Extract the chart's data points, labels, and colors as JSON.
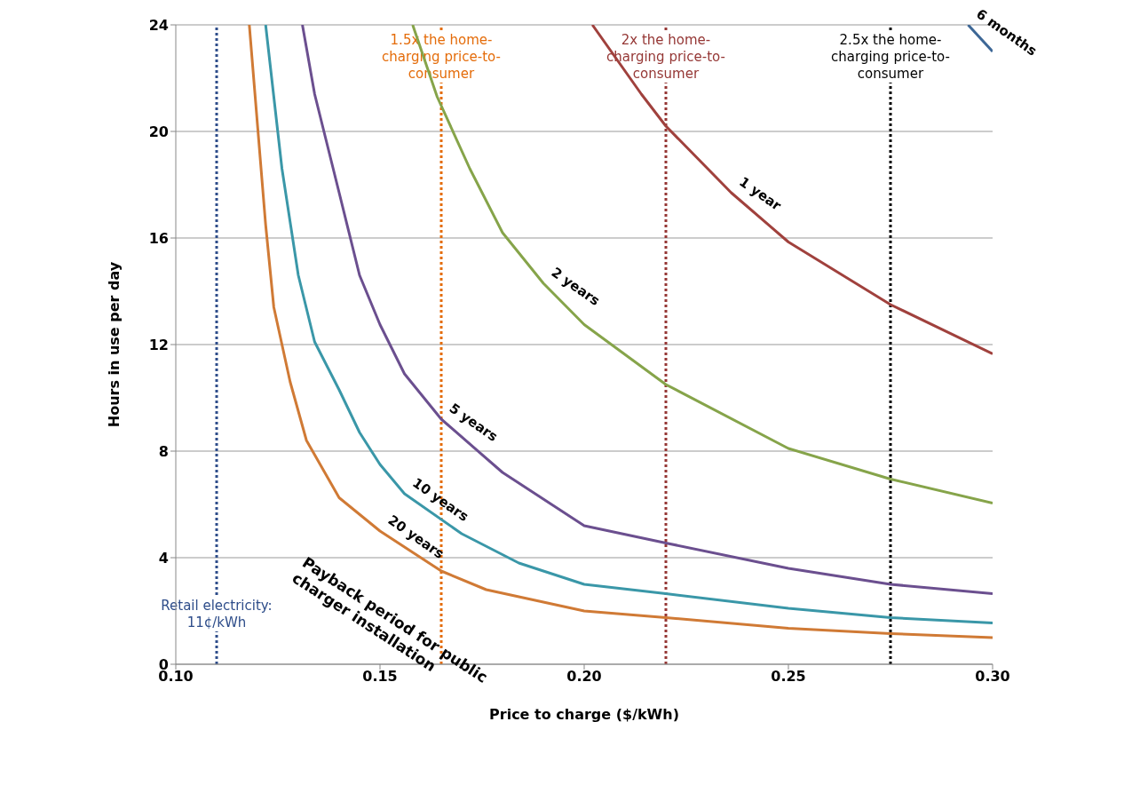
{
  "chart_data": {
    "type": "line",
    "xlabel": "Price to charge ($/kWh)",
    "ylabel": "Hours in use per day",
    "xlim": [
      0.1,
      0.3
    ],
    "xticks": [
      {
        "value": 0.1,
        "label": "0.10"
      },
      {
        "value": 0.15,
        "label": "0.15"
      },
      {
        "value": 0.2,
        "label": "0.20"
      },
      {
        "value": 0.25,
        "label": "0.25"
      },
      {
        "value": 0.3,
        "label": "0.30"
      }
    ],
    "ylim": [
      0,
      24
    ],
    "yticks": [
      0,
      4,
      8,
      12,
      16,
      20,
      24
    ],
    "grid": "y",
    "legend": false,
    "marker": "none",
    "line_style": "solid",
    "series": [
      {
        "name": "6 months",
        "color": "#3d6796",
        "x": [
          0.294,
          0.3
        ],
        "values": [
          24,
          23.0
        ]
      },
      {
        "name": "1 year",
        "color": "#a0413d",
        "x": [
          0.202,
          0.214,
          0.22,
          0.236,
          0.25,
          0.275,
          0.3
        ],
        "values": [
          24,
          21.4,
          20.2,
          17.7,
          15.85,
          13.5,
          11.65
        ]
      },
      {
        "name": "2 years",
        "color": "#86a44a",
        "x": [
          0.158,
          0.164,
          0.172,
          0.18,
          0.19,
          0.2,
          0.22,
          0.25,
          0.275,
          0.3
        ],
        "values": [
          24,
          21.3,
          18.6,
          16.2,
          14.3,
          12.75,
          10.5,
          8.1,
          6.95,
          6.05
        ]
      },
      {
        "name": "5 years",
        "color": "#6b4f8f",
        "x": [
          0.131,
          0.134,
          0.14,
          0.145,
          0.15,
          0.156,
          0.165,
          0.18,
          0.2,
          0.22,
          0.25,
          0.275,
          0.3
        ],
        "values": [
          24,
          21.4,
          17.7,
          14.6,
          12.75,
          10.9,
          9.2,
          7.2,
          5.2,
          4.55,
          3.6,
          3.0,
          2.65
        ]
      },
      {
        "name": "10 years",
        "color": "#3a97a8",
        "x": [
          0.122,
          0.126,
          0.13,
          0.134,
          0.14,
          0.145,
          0.15,
          0.156,
          0.17,
          0.184,
          0.2,
          0.22,
          0.25,
          0.275,
          0.3
        ],
        "values": [
          24,
          18.6,
          14.6,
          12.1,
          10.3,
          8.7,
          7.5,
          6.4,
          4.9,
          3.8,
          3.0,
          2.65,
          2.1,
          1.75,
          1.55
        ]
      },
      {
        "name": "20 years",
        "color": "#d07a35",
        "x": [
          0.118,
          0.122,
          0.124,
          0.128,
          0.132,
          0.14,
          0.15,
          0.165,
          0.176,
          0.2,
          0.22,
          0.25,
          0.275,
          0.3
        ],
        "values": [
          24,
          16.5,
          13.4,
          10.6,
          8.4,
          6.25,
          5.0,
          3.5,
          2.8,
          2.0,
          1.75,
          1.35,
          1.15,
          1.0
        ]
      }
    ],
    "ref_lines": [
      {
        "axis": "x",
        "value": 0.11,
        "label": "Retail electricity: 11¢/kWh",
        "color": "#2e4d8a",
        "line_style": "dotted"
      },
      {
        "axis": "x",
        "value": 0.165,
        "label": "1.5x the home-charging price-to-consumer",
        "color": "#e46c0a",
        "line_style": "dotted"
      },
      {
        "axis": "x",
        "value": 0.22,
        "label": "2x the home-charging price-to-consumer",
        "color": "#953735",
        "line_style": "dotted"
      },
      {
        "axis": "x",
        "value": 0.275,
        "label": "2.5x the home-charging price-to-consumer",
        "color": "#000000",
        "line_style": "dotted"
      }
    ],
    "annotations": [
      "Payback period for public charger installation"
    ]
  }
}
